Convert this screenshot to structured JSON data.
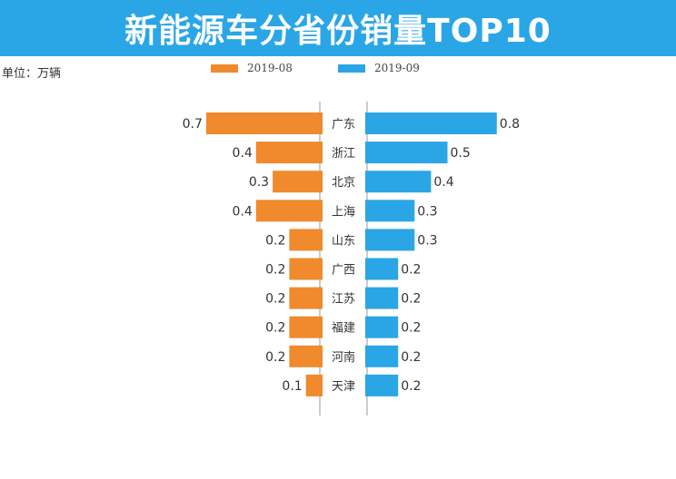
{
  "title": "新能源车分省份销量TOP10",
  "unit": "单位：万辆",
  "colors": {
    "title_bg": "#2aa6e6",
    "left": "#f08a2c",
    "right": "#2aa6e6",
    "divider": "#999999"
  },
  "chart_data": {
    "type": "bar",
    "orientation": "horizontal-butterfly",
    "title": "新能源车分省份销量TOP10",
    "unit": "单位：万辆",
    "categories": [
      "广东",
      "浙江",
      "北京",
      "上海",
      "山东",
      "广西",
      "江苏",
      "福建",
      "河南",
      "天津"
    ],
    "series": [
      {
        "name": "2019-08",
        "color": "#f08a2c",
        "values": [
          0.7,
          0.4,
          0.3,
          0.4,
          0.2,
          0.2,
          0.2,
          0.2,
          0.2,
          0.1
        ]
      },
      {
        "name": "2019-09",
        "color": "#2aa6e6",
        "values": [
          0.8,
          0.5,
          0.4,
          0.3,
          0.3,
          0.2,
          0.2,
          0.2,
          0.2,
          0.2
        ]
      }
    ],
    "value_labels": [
      [
        "0.7",
        "0.4",
        "0.3",
        "0.4",
        "0.2",
        "0.2",
        "0.2",
        "0.2",
        "0.2",
        "0.1"
      ],
      [
        "0.8",
        "0.5",
        "0.4",
        "0.3",
        "0.3",
        "0.2",
        "0.2",
        "0.2",
        "0.2",
        "0.2"
      ]
    ],
    "legend_position": "top-center",
    "grid": false
  }
}
